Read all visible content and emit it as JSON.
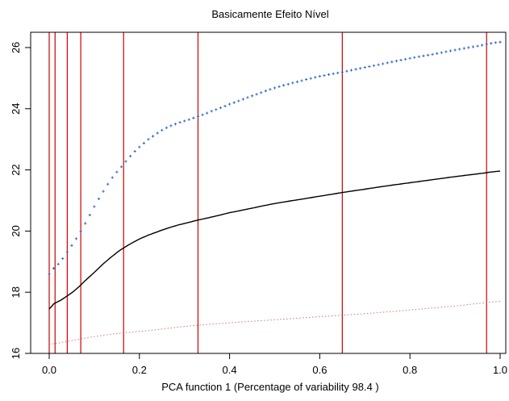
{
  "chart_data": {
    "type": "line",
    "title": "Basicamente Efeito Nível",
    "xlabel": "PCA function 1 (Percentage of variability 98.4 )",
    "ylabel": "",
    "xlim": [
      0.0,
      1.0
    ],
    "ylim": [
      16.0,
      26.5
    ],
    "x_ticks": [
      "0.0",
      "0.2",
      "0.4",
      "0.6",
      "0.8",
      "1.0"
    ],
    "y_ticks": [
      "16",
      "18",
      "20",
      "22",
      "24",
      "26"
    ],
    "grid": false,
    "legend": "none",
    "vertical_lines": {
      "color": "#cc0000",
      "x": [
        0.0,
        0.013,
        0.04,
        0.07,
        0.165,
        0.33,
        0.65,
        0.97
      ]
    },
    "series": [
      {
        "style": "solid",
        "color": "#000000",
        "x": [
          0.0,
          0.01,
          0.02,
          0.04,
          0.06,
          0.08,
          0.1,
          0.12,
          0.14,
          0.16,
          0.18,
          0.2,
          0.22,
          0.25,
          0.28,
          0.3,
          0.33,
          0.36,
          0.4,
          0.45,
          0.5,
          0.55,
          0.6,
          0.65,
          0.7,
          0.75,
          0.8,
          0.85,
          0.9,
          0.95,
          1.0
        ],
        "y": [
          17.45,
          17.62,
          17.7,
          17.88,
          18.1,
          18.38,
          18.65,
          18.93,
          19.18,
          19.4,
          19.58,
          19.74,
          19.87,
          20.03,
          20.17,
          20.25,
          20.36,
          20.46,
          20.6,
          20.75,
          20.9,
          21.02,
          21.14,
          21.26,
          21.37,
          21.48,
          21.58,
          21.68,
          21.78,
          21.87,
          21.96
        ]
      },
      {
        "style": "plus-markers",
        "color": "#1f5fbf",
        "x": [
          0.0,
          0.01,
          0.02,
          0.04,
          0.06,
          0.08,
          0.1,
          0.12,
          0.14,
          0.16,
          0.18,
          0.2,
          0.22,
          0.25,
          0.28,
          0.3,
          0.33,
          0.36,
          0.4,
          0.45,
          0.5,
          0.55,
          0.6,
          0.65,
          0.7,
          0.75,
          0.8,
          0.85,
          0.9,
          0.95,
          1.0
        ],
        "y": [
          18.6,
          18.78,
          18.92,
          19.32,
          19.75,
          20.25,
          20.8,
          21.3,
          21.75,
          22.1,
          22.45,
          22.75,
          23.0,
          23.3,
          23.5,
          23.6,
          23.75,
          23.92,
          24.15,
          24.42,
          24.68,
          24.88,
          25.06,
          25.2,
          25.35,
          25.5,
          25.65,
          25.78,
          25.92,
          26.05,
          26.18
        ]
      },
      {
        "style": "dotted",
        "color": "#c87878",
        "x": [
          0.0,
          0.05,
          0.1,
          0.15,
          0.2,
          0.3,
          0.4,
          0.5,
          0.6,
          0.7,
          0.8,
          0.9,
          1.0
        ],
        "y": [
          16.3,
          16.42,
          16.55,
          16.65,
          16.72,
          16.88,
          17.0,
          17.1,
          17.2,
          17.3,
          17.42,
          17.55,
          17.7
        ]
      }
    ]
  }
}
